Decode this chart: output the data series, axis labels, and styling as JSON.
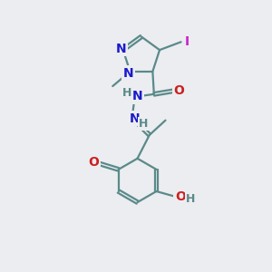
{
  "bg_color": "#ECEDF0",
  "bond_color": "#5A8A8A",
  "bond_width": 1.6,
  "dbo": 0.06,
  "atom_colors": {
    "N": "#1A1ACC",
    "O": "#CC2020",
    "I": "#CC20CC",
    "H": "#5A8A8A",
    "C": "#5A8A8A"
  },
  "fs": 10,
  "fs_small": 9
}
